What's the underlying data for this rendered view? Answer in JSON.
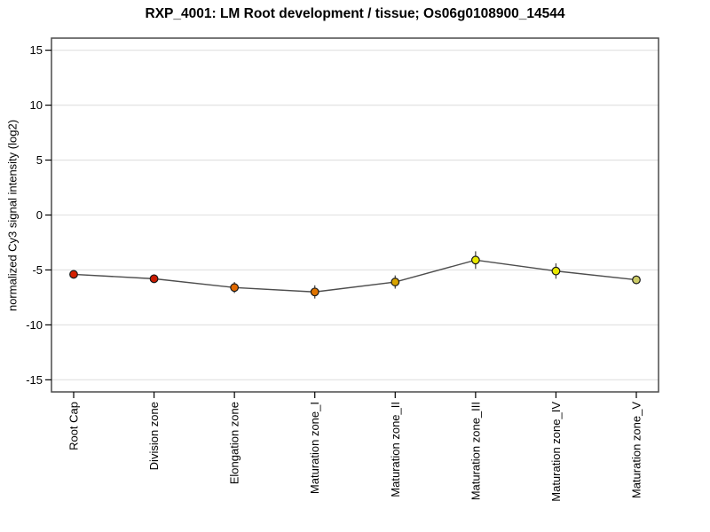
{
  "chart_data": {
    "type": "line",
    "title": "RXP_4001: LM Root development / tissue; Os06g0108900_14544",
    "ylabel": "normalized Cy3 signal intensity (log2)",
    "xlabel": "",
    "categories": [
      "Root Cap",
      "Division zone",
      "Elongation zone",
      "Maturation zone_I",
      "Maturation zone_II",
      "Maturation zone_III",
      "Maturation zone_IV",
      "Maturation zone_V"
    ],
    "values": [
      -5.4,
      -5.8,
      -6.6,
      -7.0,
      -6.1,
      -4.1,
      -5.1,
      -5.9
    ],
    "errors": [
      0.3,
      0.4,
      0.5,
      0.6,
      0.6,
      0.8,
      0.7,
      0.4
    ],
    "point_colors": [
      "#d42000",
      "#c81a00",
      "#e06800",
      "#e07400",
      "#d9a400",
      "#e8e800",
      "#e8e800",
      "#cbcb66"
    ],
    "yticks": [
      -15,
      -10,
      -5,
      0,
      5,
      10,
      15
    ],
    "ylim": [
      -16.1,
      16.1
    ],
    "grid": true,
    "legend": "none",
    "colors": {
      "line": "#4d4d4d",
      "error_bar": "#4d4d4d",
      "grid": "#e4e4e4",
      "border": "#4a4a4a",
      "background": "#ffffff",
      "text": "#000000",
      "point_stroke": "#1a1a1a"
    }
  }
}
